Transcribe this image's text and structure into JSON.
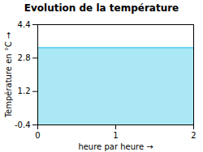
{
  "chart_data": {
    "type": "area",
    "title": "Evolution de la température",
    "xlabel": "heure par heure",
    "ylabel": "Température en °C",
    "x": [
      0,
      2
    ],
    "series": [
      {
        "type": "area",
        "color": "#aae8f5",
        "values": [
          3.3,
          3.3
        ]
      },
      {
        "type": "line",
        "color": "#55ccee",
        "values": [
          3.3,
          3.3
        ]
      }
    ],
    "xlim": [
      0,
      2
    ],
    "xticks": [
      0,
      1,
      2
    ],
    "ylim": [
      -0.4,
      4.4
    ],
    "yticks": [
      -0.4,
      1.2,
      2.8,
      4.4
    ],
    "grid": false
  }
}
